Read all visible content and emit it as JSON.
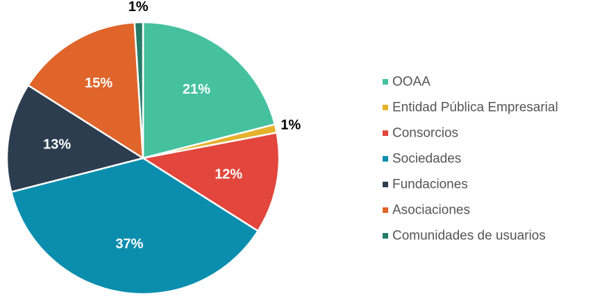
{
  "chart_data": {
    "type": "pie",
    "title": "",
    "legend_position": "right",
    "slices": [
      {
        "name": "OOAA",
        "value": 21,
        "label": "21%",
        "color": "#45c1a0"
      },
      {
        "name": "Entidad Pública Empresarial",
        "value": 1,
        "label": "1%",
        "color": "#e6b12c"
      },
      {
        "name": "Consorcios",
        "value": 12,
        "label": "12%",
        "color": "#e2463c"
      },
      {
        "name": "Sociedades",
        "value": 37,
        "label": "37%",
        "color": "#0b8eae"
      },
      {
        "name": "Fundaciones",
        "value": 13,
        "label": "13%",
        "color": "#2d3d50"
      },
      {
        "name": "Asociaciones",
        "value": 15,
        "label": "15%",
        "color": "#e0652b"
      },
      {
        "name": "Comunidades de usuarios",
        "value": 1,
        "label": "1%",
        "color": "#257b68"
      }
    ]
  }
}
